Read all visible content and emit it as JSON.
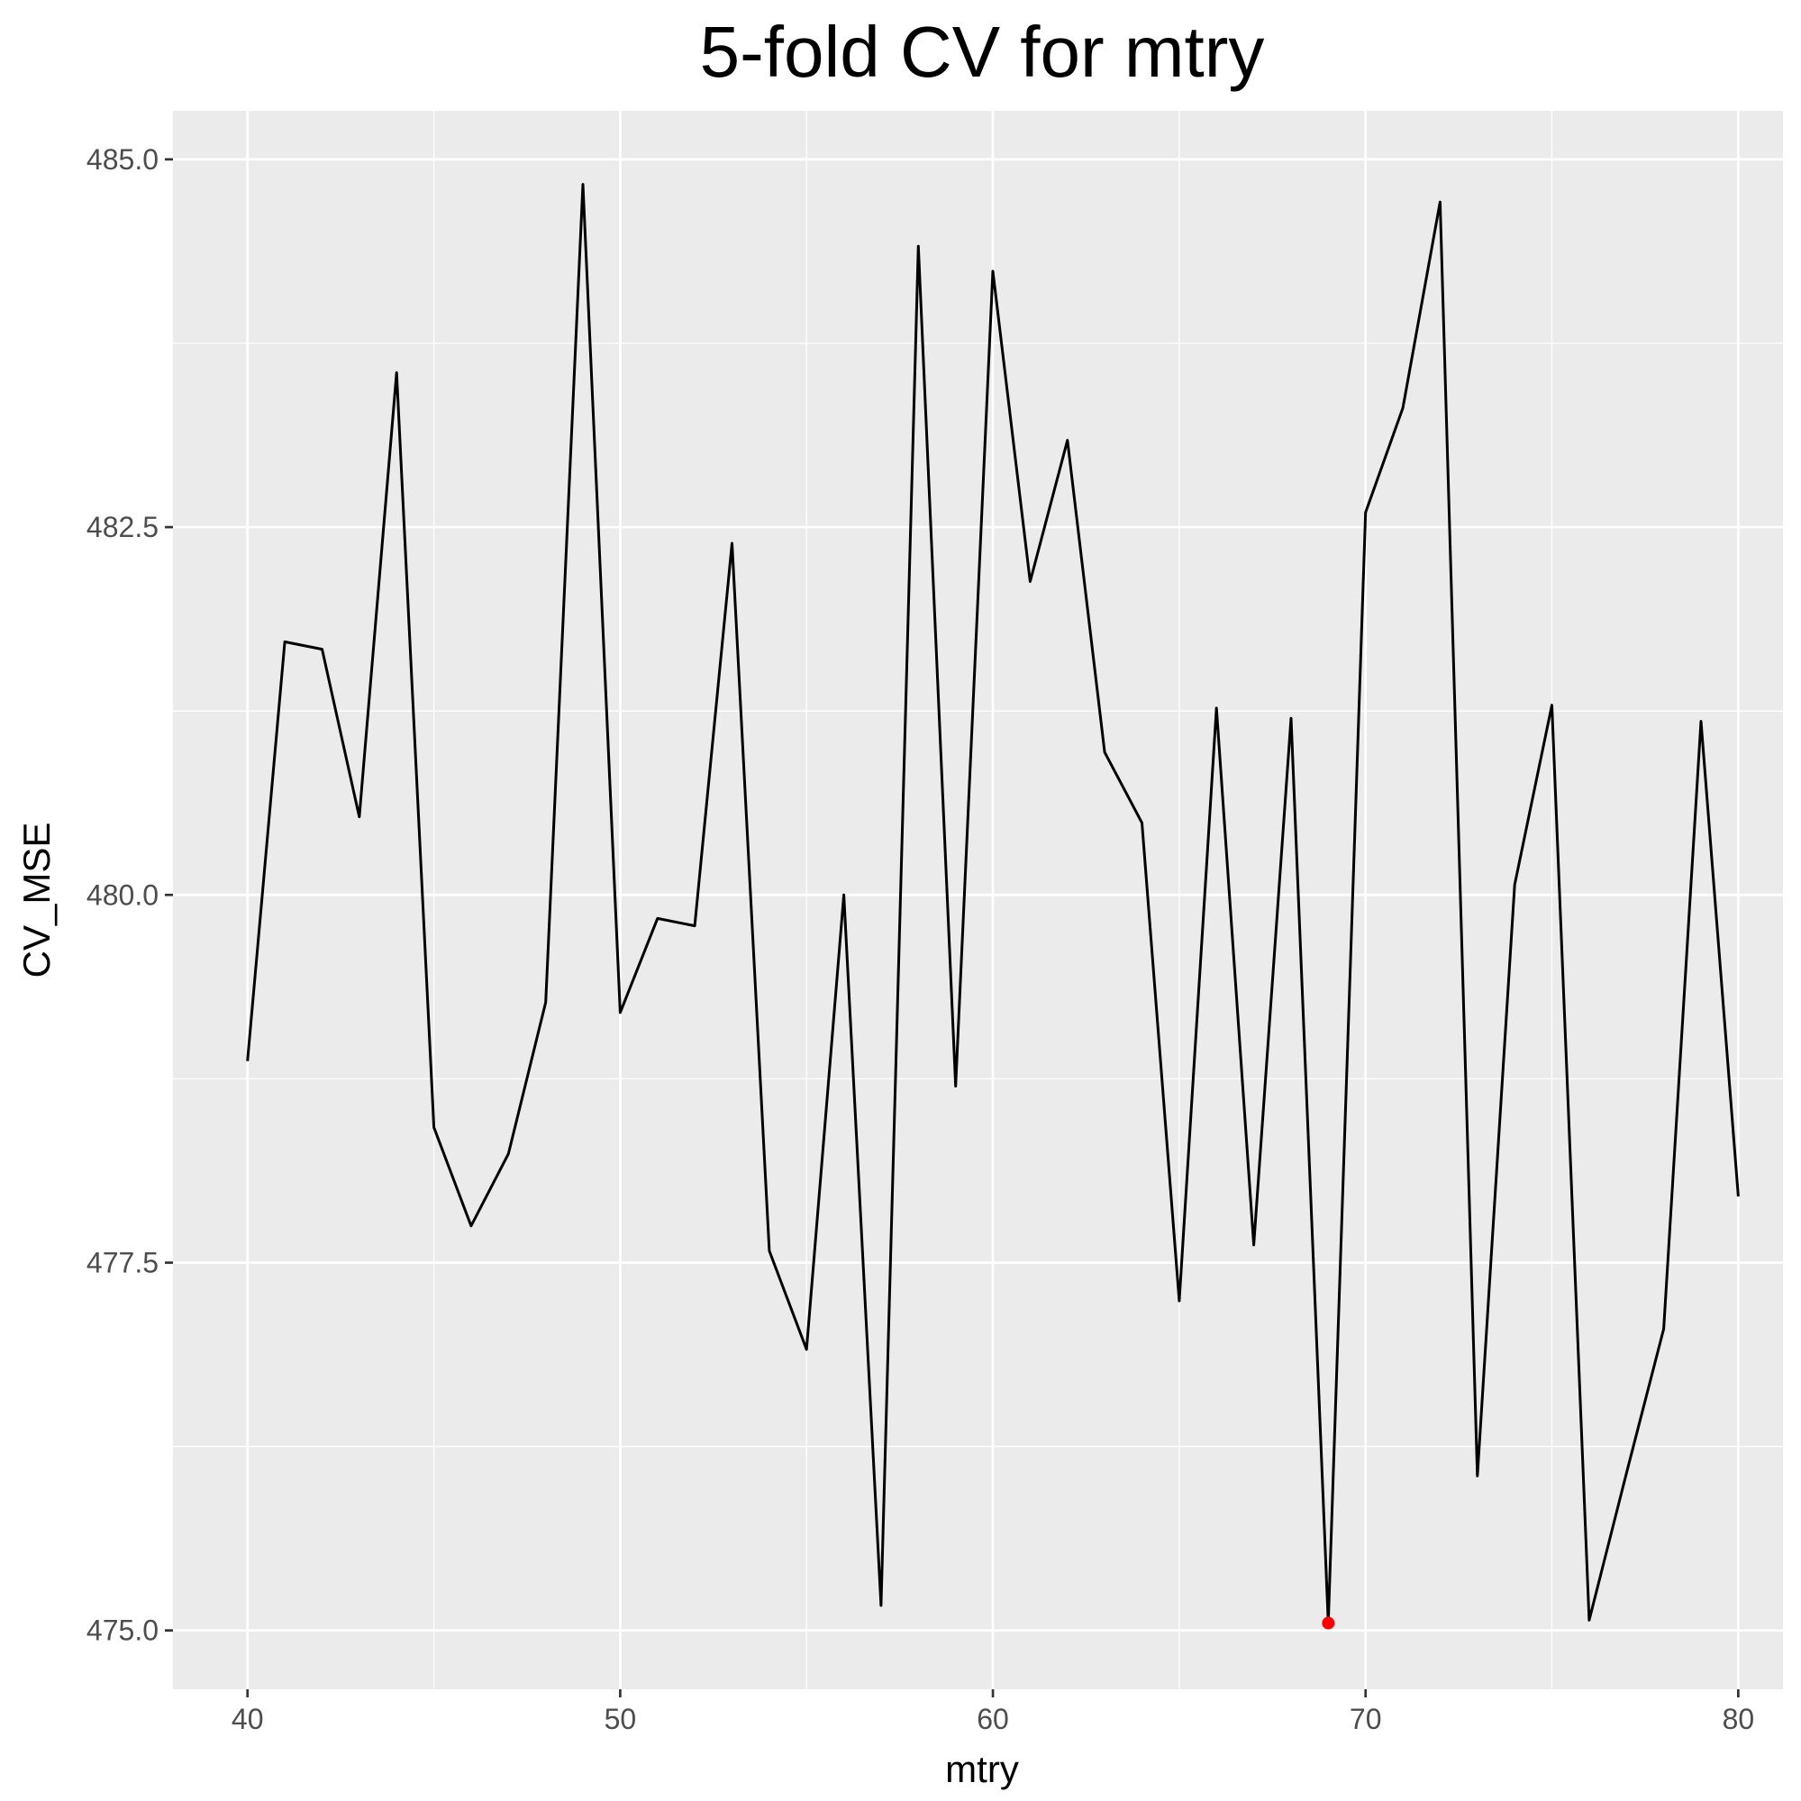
{
  "chart_data": {
    "type": "line",
    "title": "5-fold CV for mtry",
    "xlabel": "mtry",
    "ylabel": "CV_MSE",
    "xlim": [
      38,
      81.2
    ],
    "ylim": [
      474.6,
      485.33
    ],
    "xticks": [
      40,
      50,
      60,
      70,
      80
    ],
    "xtick_labels": [
      "40",
      "50",
      "60",
      "70",
      "80"
    ],
    "yticks": [
      475.0,
      477.5,
      480.0,
      482.5,
      485.0
    ],
    "ytick_labels": [
      "475.0",
      "477.5",
      "480.0",
      "482.5",
      "485.0"
    ],
    "grid": true,
    "panel_background": "#EBEBEB",
    "line_color": "#000000",
    "highlight_color": "#FF0000",
    "series": [
      {
        "name": "CV_MSE",
        "x": [
          40,
          41,
          42,
          43,
          44,
          45,
          46,
          47,
          48,
          49,
          50,
          51,
          52,
          53,
          54,
          55,
          56,
          57,
          58,
          59,
          60,
          61,
          62,
          63,
          64,
          65,
          66,
          67,
          68,
          69,
          70,
          71,
          72,
          73,
          74,
          75,
          76,
          77,
          78,
          79,
          80
        ],
        "y": [
          478.87,
          481.72,
          481.67,
          480.53,
          483.55,
          478.42,
          477.75,
          478.24,
          479.27,
          484.83,
          479.2,
          479.84,
          479.79,
          482.39,
          477.58,
          476.91,
          480.0,
          475.17,
          484.41,
          478.7,
          484.24,
          482.13,
          483.09,
          480.97,
          480.49,
          477.24,
          481.27,
          477.62,
          481.2,
          475.05,
          482.6,
          483.31,
          484.71,
          476.05,
          480.07,
          481.29,
          475.07,
          476.07,
          477.05,
          481.18,
          477.95
        ]
      }
    ],
    "highlight": {
      "label": "minimum",
      "x": 69,
      "y": 475.05
    }
  }
}
